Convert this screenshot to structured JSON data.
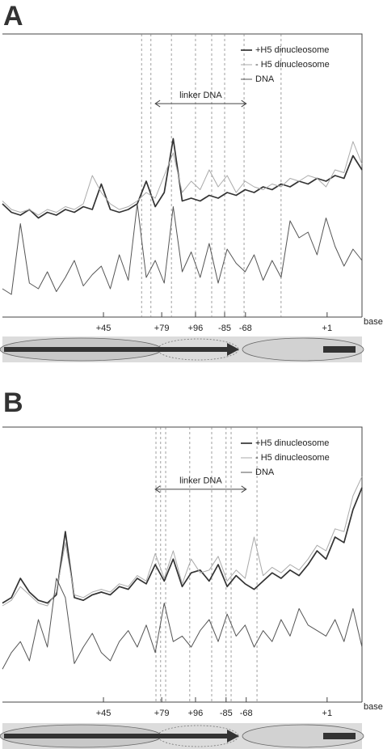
{
  "chart_data": [
    {
      "type": "line",
      "panel_label": "A",
      "xlabel": "base",
      "x": [
        0,
        2.5,
        5,
        7.5,
        10,
        12.5,
        15,
        17.5,
        20,
        22.5,
        25,
        27.5,
        30,
        32.5,
        35,
        37.5,
        40,
        42.5,
        45,
        47.5,
        50,
        52.5,
        55,
        57.5,
        60,
        62.5,
        65,
        67.5,
        70,
        72.5,
        75,
        77.5,
        80,
        82.5,
        85,
        87.5,
        90,
        92.5,
        95,
        97.5,
        100
      ],
      "series": [
        {
          "name": "+H5 dinucleosome",
          "color": "#333333",
          "values": [
            40,
            37,
            36,
            38,
            35,
            37,
            36,
            38,
            37,
            39,
            38,
            47,
            38,
            37,
            38,
            40,
            48,
            39,
            44,
            63,
            41,
            42,
            41,
            43,
            42,
            44,
            43,
            45,
            44,
            46,
            45,
            47,
            46,
            48,
            47,
            49,
            48,
            50,
            49,
            57,
            52
          ]
        },
        {
          "name": "- H5 dinucleosome",
          "color": "#aaaaaa",
          "values": [
            41,
            38,
            37,
            38,
            36,
            38,
            37,
            39,
            38,
            40,
            50,
            44,
            40,
            38,
            39,
            41,
            44,
            42,
            50,
            58,
            44,
            48,
            45,
            52,
            46,
            50,
            44,
            48,
            46,
            45,
            47,
            46,
            49,
            48,
            50,
            49,
            46,
            52,
            51,
            62,
            54
          ]
        },
        {
          "name": "DNA",
          "color": "#555555",
          "values": [
            10,
            8,
            33,
            12,
            10,
            16,
            9,
            14,
            20,
            11,
            15,
            18,
            10,
            22,
            13,
            40,
            14,
            20,
            12,
            39,
            16,
            23,
            14,
            26,
            12,
            24,
            19,
            16,
            22,
            13,
            20,
            14,
            34,
            28,
            30,
            22,
            35,
            25,
            18,
            24,
            20
          ]
        }
      ],
      "xlim": [
        0,
        100
      ],
      "ylim": [
        0,
        100
      ],
      "xticks": [
        {
          "value": 28.1,
          "label": "+45"
        },
        {
          "value": 44.3,
          "label": "+79"
        },
        {
          "value": 53.7,
          "label": "+96"
        },
        {
          "value": 61.8,
          "label": "-85"
        },
        {
          "value": 67.6,
          "label": "-68"
        },
        {
          "value": 90.3,
          "label": "+1"
        }
      ],
      "reference_lines_x": [
        38.7,
        41.3,
        47,
        53.7,
        58.2,
        61.8,
        67.2,
        77.5
      ],
      "annotation": {
        "text": "linker DNA",
        "x": [
          42.5,
          67.8
        ],
        "y": 75.4
      }
    },
    {
      "type": "line",
      "panel_label": "B",
      "xlabel": "base",
      "x": [
        0,
        2.5,
        5,
        7.5,
        10,
        12.5,
        15,
        17.5,
        20,
        22.5,
        25,
        27.5,
        30,
        32.5,
        35,
        37.5,
        40,
        42.5,
        45,
        47.5,
        50,
        52.5,
        55,
        57.5,
        60,
        62.5,
        65,
        67.5,
        70,
        72.5,
        75,
        77.5,
        80,
        82.5,
        85,
        87.5,
        90,
        92.5,
        95,
        97.5,
        100
      ],
      "series": [
        {
          "name": "+H5 dinucleosome",
          "color": "#333333",
          "values": [
            36,
            38,
            45,
            40,
            37,
            36,
            39,
            62,
            38,
            37,
            39,
            40,
            39,
            42,
            41,
            45,
            43,
            50,
            44,
            52,
            42,
            47,
            48,
            44,
            50,
            42,
            46,
            43,
            41,
            44,
            47,
            45,
            48,
            46,
            50,
            55,
            52,
            60,
            58,
            70,
            78
          ]
        },
        {
          "name": "- H5 dinucleosome",
          "color": "#aaaaaa",
          "values": [
            35,
            37,
            42,
            39,
            36,
            35,
            40,
            58,
            39,
            38,
            40,
            41,
            40,
            43,
            42,
            46,
            44,
            54,
            45,
            55,
            43,
            52,
            47,
            48,
            53,
            44,
            48,
            45,
            60,
            46,
            49,
            47,
            50,
            48,
            52,
            57,
            55,
            63,
            62,
            75,
            82
          ]
        },
        {
          "name": "DNA",
          "color": "#555555",
          "values": [
            12,
            18,
            22,
            15,
            30,
            20,
            45,
            38,
            14,
            20,
            25,
            18,
            15,
            22,
            26,
            20,
            28,
            18,
            36,
            22,
            24,
            20,
            26,
            30,
            22,
            32,
            24,
            28,
            20,
            26,
            22,
            30,
            24,
            34,
            28,
            26,
            24,
            30,
            22,
            34,
            20
          ]
        }
      ],
      "xlim": [
        0,
        100
      ],
      "ylim": [
        0,
        100
      ],
      "xticks": [
        {
          "value": 28.1,
          "label": "+45"
        },
        {
          "value": 44.3,
          "label": "+79"
        },
        {
          "value": 53.7,
          "label": "+96"
        },
        {
          "value": 62.2,
          "label": "-85"
        },
        {
          "value": 67.8,
          "label": "-68"
        },
        {
          "value": 90.3,
          "label": "+1"
        }
      ],
      "reference_lines_x": [
        42.7,
        44.0,
        45.4,
        52.1,
        58.2,
        62.2,
        63.6,
        70.8
      ],
      "annotation": {
        "text": "linker DNA",
        "x": [
          42.5,
          67.8
        ],
        "y": 77.4
      }
    }
  ]
}
